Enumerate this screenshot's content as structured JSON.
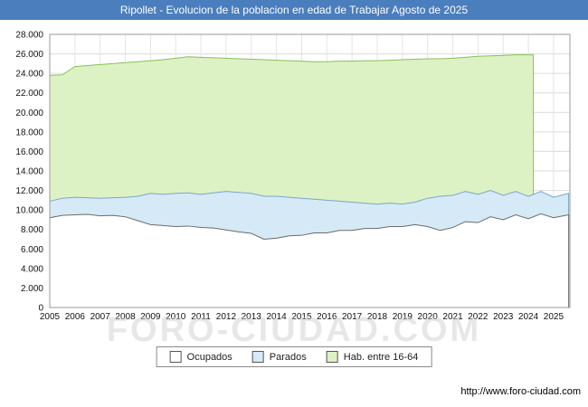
{
  "title": "Ripollet - Evolucion de la poblacion en edad de Trabajar Agosto de 2025",
  "watermark": "FORO-CIUDAD.COM",
  "footer_url": "http://www.foro-ciudad.com",
  "colors": {
    "titlebar": "#4a7ebd",
    "grid": "#dcdcdc",
    "plot_border": "#999999"
  },
  "legend": [
    {
      "label": "Ocupados",
      "color": "#ffffff",
      "border": "#555555"
    },
    {
      "label": "Parados",
      "color": "#d6e9f7",
      "border": "#555555"
    },
    {
      "label": "Hab. entre 16-64",
      "color": "#ddf2c4",
      "border": "#555555"
    }
  ],
  "chart_data": {
    "type": "area",
    "title": "Ripollet - Evolucion de la poblacion en edad de Trabajar Agosto de 2025",
    "xlabel": "",
    "ylabel": "",
    "ylim": [
      0,
      28000
    ],
    "ytick_step": 2000,
    "xmin": 2005,
    "xmax": 2025.65,
    "xticks": [
      2005,
      2006,
      2007,
      2008,
      2009,
      2010,
      2011,
      2012,
      2013,
      2014,
      2015,
      2016,
      2017,
      2018,
      2019,
      2020,
      2021,
      2022,
      2023,
      2024,
      2025
    ],
    "x": [
      2005,
      2005.5,
      2006,
      2006.5,
      2007,
      2007.5,
      2008,
      2008.5,
      2009,
      2009.5,
      2010,
      2010.5,
      2011,
      2011.5,
      2012,
      2012.5,
      2013,
      2013.5,
      2014,
      2014.5,
      2015,
      2015.5,
      2016,
      2016.5,
      2017,
      2017.5,
      2018,
      2018.5,
      2019,
      2019.5,
      2020,
      2020.5,
      2021,
      2021.5,
      2022,
      2022.5,
      2023,
      2023.5,
      2024,
      2024.5,
      2025,
      2025.6
    ],
    "series": [
      {
        "name": "Ocupados",
        "stacked": true,
        "fill": "#ffffff",
        "stroke": "#6b6b6b",
        "values": [
          9200,
          9450,
          9500,
          9550,
          9400,
          9450,
          9300,
          8900,
          8500,
          8400,
          8300,
          8350,
          8200,
          8150,
          7950,
          7750,
          7600,
          7000,
          7100,
          7350,
          7400,
          7650,
          7650,
          7900,
          7900,
          8100,
          8100,
          8300,
          8300,
          8500,
          8300,
          7900,
          8200,
          8800,
          8700,
          9300,
          9000,
          9500,
          9100,
          9600,
          9200,
          9500
        ]
      },
      {
        "name": "Parados",
        "stacked": true,
        "fill": "#d6e9f7",
        "stroke": "#7aa6cc",
        "values": [
          1700,
          1750,
          1800,
          1700,
          1800,
          1800,
          2000,
          2500,
          3200,
          3200,
          3400,
          3400,
          3400,
          3600,
          3950,
          4050,
          4100,
          4400,
          4300,
          3950,
          3800,
          3450,
          3350,
          3000,
          2900,
          2600,
          2500,
          2400,
          2300,
          2300,
          2900,
          3500,
          3300,
          3100,
          2900,
          2700,
          2500,
          2400,
          2300,
          2300,
          2100,
          2200
        ]
      },
      {
        "name": "Hab. entre 16-64",
        "stacked": false,
        "fill": "#ddf2c4",
        "stroke": "#86c153",
        "x": [
          2005,
          2005.5,
          2006,
          2006.5,
          2007,
          2007.5,
          2008,
          2008.5,
          2009,
          2009.5,
          2010,
          2010.5,
          2011,
          2011.5,
          2012,
          2012.5,
          2013,
          2013.5,
          2014,
          2014.5,
          2015,
          2015.5,
          2016,
          2016.5,
          2017,
          2017.5,
          2018,
          2018.5,
          2019,
          2019.5,
          2020,
          2020.5,
          2021,
          2021.5,
          2022,
          2022.5,
          2023,
          2023.5,
          2024,
          2024.2
        ],
        "values": [
          23800,
          23850,
          24700,
          24800,
          24900,
          25000,
          25100,
          25200,
          25300,
          25400,
          25550,
          25700,
          25650,
          25600,
          25550,
          25500,
          25450,
          25400,
          25350,
          25300,
          25250,
          25200,
          25200,
          25250,
          25250,
          25300,
          25300,
          25350,
          25400,
          25450,
          25500,
          25500,
          25550,
          25650,
          25750,
          25800,
          25850,
          25900,
          25900,
          25900
        ]
      }
    ]
  }
}
